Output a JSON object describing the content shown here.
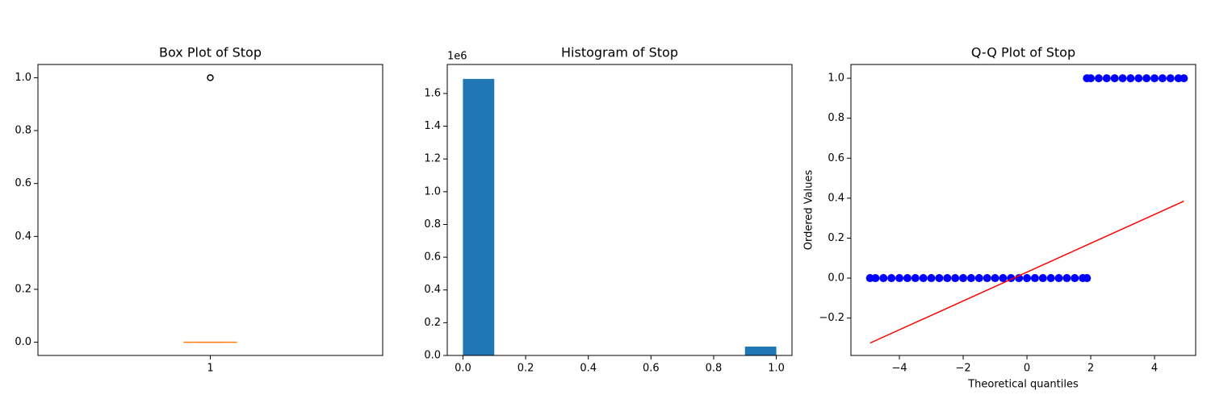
{
  "chart_data": [
    {
      "type": "box",
      "title": "Box Plot of Stop",
      "boxes": [
        {
          "whislo": 0,
          "q1": 0,
          "median": 0,
          "q3": 0,
          "whishi": 0,
          "fliers": [
            1
          ]
        }
      ],
      "positions": [
        1
      ],
      "xlim": [
        0.5,
        1.5
      ],
      "xticks": [
        1
      ],
      "ylim": [
        -0.05,
        1.05
      ],
      "yticks": [
        {
          "value": 0,
          "label": "0.0"
        },
        {
          "value": 0.2,
          "label": "0.2"
        },
        {
          "value": 0.4,
          "label": "0.4"
        },
        {
          "value": 0.6,
          "label": "0.6"
        },
        {
          "value": 0.8,
          "label": "0.8"
        },
        {
          "value": 1,
          "label": "1.0"
        }
      ],
      "box_color": "#000000",
      "median_color": "#ff7f0e"
    },
    {
      "type": "histogram",
      "title": "Histogram of Stop",
      "bins": [
        0,
        0.1,
        0.2,
        0.3,
        0.4,
        0.5,
        0.6,
        0.7,
        0.8,
        0.9,
        1.0
      ],
      "counts": [
        1689000,
        0,
        0,
        0,
        0,
        0,
        0,
        0,
        0,
        54000
      ],
      "color": "#1f77b4",
      "xlim": [
        -0.05,
        1.05
      ],
      "xticks": [
        {
          "value": 0,
          "label": "0.0"
        },
        {
          "value": 0.2,
          "label": "0.2"
        },
        {
          "value": 0.4,
          "label": "0.4"
        },
        {
          "value": 0.6,
          "label": "0.6"
        },
        {
          "value": 0.8,
          "label": "0.8"
        },
        {
          "value": 1,
          "label": "1.0"
        }
      ],
      "ylim": [
        0,
        1777000
      ],
      "yticks": [
        {
          "value": 0,
          "label": "0.0"
        },
        {
          "value": 200000,
          "label": "0.2"
        },
        {
          "value": 400000,
          "label": "0.4"
        },
        {
          "value": 600000,
          "label": "0.6"
        },
        {
          "value": 800000,
          "label": "0.8"
        },
        {
          "value": 1000000,
          "label": "1.0"
        },
        {
          "value": 1200000,
          "label": "1.2"
        },
        {
          "value": 1400000,
          "label": "1.4"
        },
        {
          "value": 1600000,
          "label": "1.6"
        }
      ],
      "y_offset_label": "1e6"
    },
    {
      "type": "qq",
      "title": "Q-Q Plot of Stop",
      "x_label": "Theoretical quantiles",
      "y_label": "Ordered Values",
      "points": {
        "color": "#0000ff",
        "x": [
          -4.92,
          -4.75,
          -4.5,
          -4.25,
          -4,
          -3.75,
          -3.5,
          -3.25,
          -3,
          -2.75,
          -2.5,
          -2.25,
          -2,
          -1.75,
          -1.5,
          -1.25,
          -1,
          -0.75,
          -0.5,
          -0.25,
          0,
          0.25,
          0.5,
          0.75,
          1,
          1.25,
          1.5,
          1.75,
          1.88,
          1.88,
          2,
          2.25,
          2.5,
          2.75,
          3,
          3.25,
          3.5,
          3.75,
          4,
          4.25,
          4.5,
          4.75,
          4.92
        ],
        "y": [
          0,
          0,
          0,
          0,
          0,
          0,
          0,
          0,
          0,
          0,
          0,
          0,
          0,
          0,
          0,
          0,
          0,
          0,
          0,
          0,
          0,
          0,
          0,
          0,
          0,
          0,
          0,
          0,
          0,
          1,
          1,
          1,
          1,
          1,
          1,
          1,
          1,
          1,
          1,
          1,
          1,
          1,
          1
        ]
      },
      "fit_line": {
        "color": "#ff0000",
        "x": [
          -4.92,
          4.92
        ],
        "y": [
          -0.325,
          0.385
        ]
      },
      "xlim": [
        -5.52,
        5.29
      ],
      "xticks": [
        {
          "value": -4,
          "label": "−4"
        },
        {
          "value": -2,
          "label": "−2"
        },
        0,
        2,
        4
      ],
      "ylim": [
        -0.387,
        1.069
      ],
      "yticks": [
        {
          "value": -0.2,
          "label": "−0.2"
        },
        {
          "value": 0,
          "label": "0.0"
        },
        {
          "value": 0.2,
          "label": "0.2"
        },
        {
          "value": 0.4,
          "label": "0.4"
        },
        {
          "value": 0.6,
          "label": "0.6"
        },
        {
          "value": 0.8,
          "label": "0.8"
        },
        {
          "value": 1,
          "label": "1.0"
        }
      ]
    }
  ]
}
